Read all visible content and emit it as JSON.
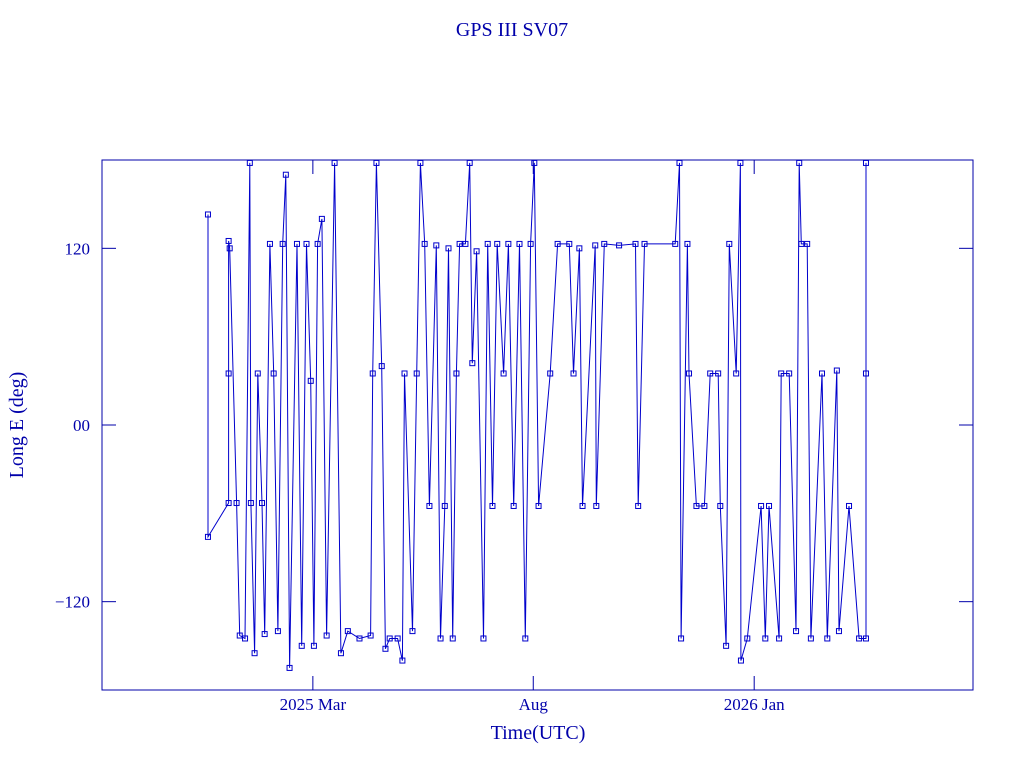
{
  "chart_data": {
    "type": "line",
    "title": "GPS III SV07",
    "x_label": "Time(UTC)",
    "y_label": "Long E (deg)",
    "color": "#0000cc",
    "marker": "square",
    "x": [
      2024.969,
      2024.969,
      2025.008,
      2025.008,
      2025.008,
      2025.01,
      2025.023,
      2025.029,
      2025.039,
      2025.048,
      2025.05,
      2025.057,
      2025.063,
      2025.071,
      2025.076,
      2025.086,
      2025.093,
      2025.101,
      2025.11,
      2025.116,
      2025.123,
      2025.137,
      2025.146,
      2025.155,
      2025.163,
      2025.169,
      2025.176,
      2025.184,
      2025.193,
      2025.208,
      2025.22,
      2025.233,
      2025.255,
      2025.276,
      2025.28,
      2025.287,
      2025.297,
      2025.304,
      2025.312,
      2025.327,
      2025.336,
      2025.34,
      2025.355,
      2025.363,
      2025.37,
      2025.378,
      2025.387,
      2025.4,
      2025.408,
      2025.416,
      2025.423,
      2025.431,
      2025.438,
      2025.444,
      2025.455,
      2025.463,
      2025.468,
      2025.476,
      2025.489,
      2025.497,
      2025.506,
      2025.515,
      2025.527,
      2025.536,
      2025.546,
      2025.557,
      2025.568,
      2025.578,
      2025.585,
      2025.593,
      2025.615,
      2025.629,
      2025.651,
      2025.659,
      2025.67,
      2025.676,
      2025.7,
      2025.702,
      2025.717,
      2025.745,
      2025.776,
      2025.781,
      2025.793,
      2025.851,
      2025.859,
      2025.862,
      2025.874,
      2025.877,
      2025.891,
      2025.906,
      2025.917,
      2025.932,
      2025.936,
      2025.947,
      2025.953,
      2025.966,
      2025.974,
      2025.975,
      2025.987,
      2026.013,
      2026.021,
      2026.028,
      2026.047,
      2026.051,
      2026.066,
      2026.079,
      2026.085,
      2026.089,
      2026.1,
      2026.107,
      2026.128,
      2026.138,
      2026.156,
      2026.16,
      2026.179,
      2026.198,
      2026.211,
      2026.211,
      2026.211
    ],
    "values": [
      143,
      -76,
      -53,
      35,
      125,
      120,
      -53,
      -143,
      -145,
      178,
      -53,
      -155,
      35,
      -53,
      -142,
      123,
      35,
      -140,
      123,
      170,
      -165,
      123,
      -150,
      123,
      30,
      -150,
      123,
      140,
      -143,
      178,
      -155,
      -140,
      -145,
      -143,
      35,
      178,
      40,
      -152,
      -145,
      -145,
      -160,
      35,
      -140,
      35,
      178,
      123,
      -55,
      122,
      -145,
      -55,
      120,
      -145,
      35,
      123,
      123,
      178,
      42,
      118,
      -145,
      123,
      -55,
      123,
      35,
      123,
      -55,
      123,
      -145,
      123,
      178,
      -55,
      35,
      123,
      123,
      35,
      120,
      -55,
      122,
      -55,
      123,
      122,
      123,
      -55,
      123,
      123,
      178,
      -145,
      123,
      35,
      -55,
      -55,
      35,
      35,
      -55,
      -150,
      123,
      35,
      178,
      -160,
      -145,
      -55,
      -145,
      -55,
      -145,
      35,
      35,
      -140,
      178,
      123,
      123,
      -145,
      35,
      -145,
      37,
      -140,
      -55,
      -145,
      -145,
      178,
      35
    ],
    "xlim": [
      2024.769,
      2026.413
    ],
    "xticks": [
      {
        "value": 2025.167,
        "label": "2025 Mar"
      },
      {
        "value": 2025.583,
        "label": "Aug"
      },
      {
        "value": 2026.0,
        "label": "2026 Jan"
      }
    ],
    "ylim": [
      -180,
      180
    ],
    "yticks": [
      {
        "value": -120,
        "label": "−120"
      },
      {
        "value": 0,
        "label": "00"
      },
      120
    ]
  }
}
